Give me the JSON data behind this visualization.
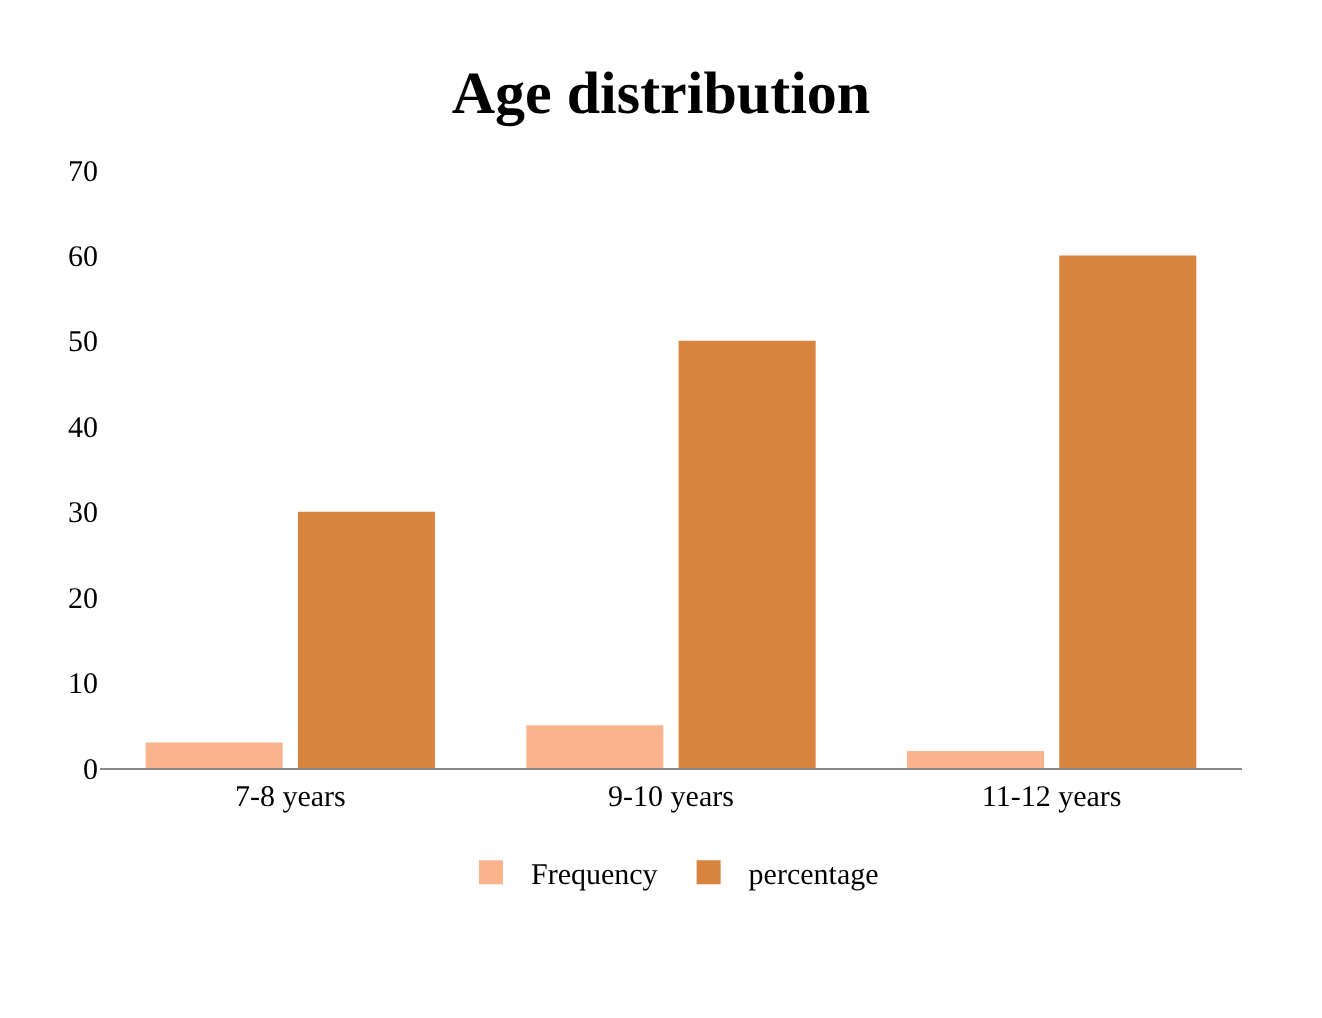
{
  "chart_data": {
    "type": "bar",
    "title": "Age distribution",
    "categories": [
      "7-8 years",
      "9-10 years",
      "11-12 years"
    ],
    "series": [
      {
        "name": "Frequency",
        "color": "#f9b48e",
        "values": [
          3,
          5,
          2
        ]
      },
      {
        "name": "percentage",
        "color": "#d9843e",
        "values": [
          30,
          50,
          60
        ]
      }
    ],
    "ylim": [
      0,
      70
    ],
    "yticks": [
      0,
      10,
      20,
      30,
      40,
      50,
      60,
      70
    ],
    "grid": false,
    "legend": "bottom"
  }
}
